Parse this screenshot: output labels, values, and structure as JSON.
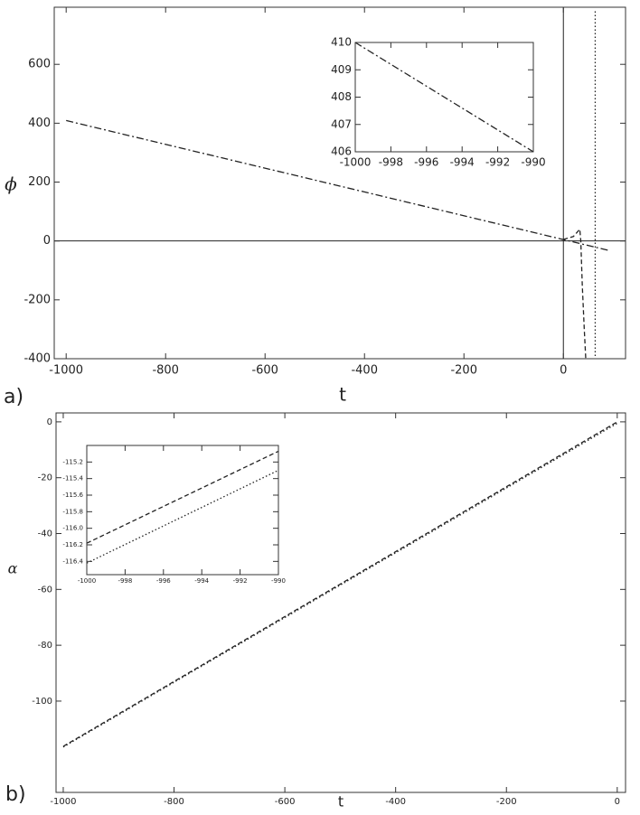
{
  "panel_labels": [
    "a)",
    "b)"
  ],
  "chart_data": [
    {
      "type": "line",
      "x_label": "t",
      "y_label": "ϕ",
      "axes": true,
      "xlim": [
        -1024,
        125
      ],
      "ylim": [
        -400,
        794
      ],
      "xticks": [
        -1000,
        -800,
        -600,
        -400,
        -200,
        0
      ],
      "yticks": [
        -400,
        -200,
        0,
        200,
        400,
        600
      ],
      "series": [
        {
          "color": "#222222",
          "style": "dashdot",
          "x": [
            -1000,
            91
          ],
          "values": [
            409,
            -32
          ]
        },
        {
          "color": "#222222",
          "style": "dashed",
          "x": [
            0,
            20,
            33,
            35,
            38,
            42,
            45
          ],
          "values": [
            5,
            15,
            40,
            0,
            -150,
            -300,
            -400
          ]
        },
        {
          "color": "#222222",
          "style": "dotted",
          "x": [
            64,
            64
          ],
          "values": [
            780,
            -400
          ]
        }
      ]
    },
    {
      "type": "line",
      "axes": false,
      "xlim": [
        -1000,
        -990
      ],
      "ylim": [
        406,
        410
      ],
      "xticks": [
        -1000,
        -998,
        -996,
        -994,
        -992,
        -990
      ],
      "yticks": [
        406,
        407,
        408,
        409,
        410
      ],
      "series": [
        {
          "color": "#222222",
          "style": "dashdot",
          "x": [
            -1000,
            -990
          ],
          "values": [
            410,
            406
          ]
        }
      ]
    },
    {
      "type": "line",
      "x_label": "t",
      "y_label": "α",
      "axes": false,
      "xlim": [
        -1013,
        15
      ],
      "ylim": [
        -132.7,
        3.2
      ],
      "xticks": [
        -1000,
        -800,
        -600,
        -400,
        -200,
        0
      ],
      "yticks": [
        -100,
        -80,
        -60,
        -40,
        -20,
        0
      ],
      "series": [
        {
          "color": "#222222",
          "style": "dashed",
          "x": [
            -1000,
            0
          ],
          "values": [
            -116.2,
            0
          ]
        },
        {
          "color": "#222222",
          "style": "dotted",
          "x": [
            -1000,
            0
          ],
          "values": [
            -116.45,
            -0.5
          ]
        }
      ]
    },
    {
      "type": "line",
      "axes": false,
      "xlim": [
        -1000,
        -990
      ],
      "ylim": [
        -116.56,
        -115
      ],
      "xticks": [
        -1000,
        -998,
        -996,
        -994,
        -992,
        -990
      ],
      "yticks": [
        -116.4,
        -116.2,
        {
          "value": -116,
          "label": "-116.0"
        },
        -115.8,
        -115.6,
        -115.4,
        -115.2
      ],
      "series": [
        {
          "color": "#222222",
          "style": "dashed",
          "x": [
            -1000,
            -990
          ],
          "values": [
            -116.18,
            -115.07
          ]
        },
        {
          "color": "#222222",
          "style": "dotted",
          "x": [
            -1000,
            -990
          ],
          "values": [
            -116.42,
            -115.3
          ]
        }
      ]
    }
  ]
}
